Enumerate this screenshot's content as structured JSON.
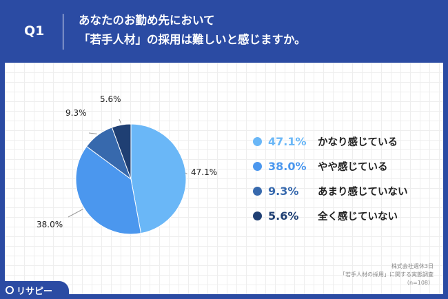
{
  "header": {
    "q_label": "Q1",
    "line1": "あなたのお勤め先において",
    "line2": "「若手人材」の採用は難しいと感じますか。"
  },
  "chart_data": {
    "type": "pie",
    "slices": [
      {
        "label": "かなり感じている",
        "value": 47.1,
        "display": "47.1%",
        "color": "#6ab7f7"
      },
      {
        "label": "やや感じている",
        "value": 38.0,
        "display": "38.0%",
        "color": "#4b97ee"
      },
      {
        "label": "あまり感じていない",
        "value": 9.3,
        "display": "9.3%",
        "color": "#3769ad"
      },
      {
        "label": "全く感じていない",
        "value": 5.6,
        "display": "5.6%",
        "color": "#1f3f73"
      }
    ]
  },
  "source": {
    "line1": "株式会社週休3日",
    "line2": "「若手人材の採用」に関する実態調査",
    "line3": "（n=108）"
  },
  "logo": {
    "text": "リサピー"
  }
}
